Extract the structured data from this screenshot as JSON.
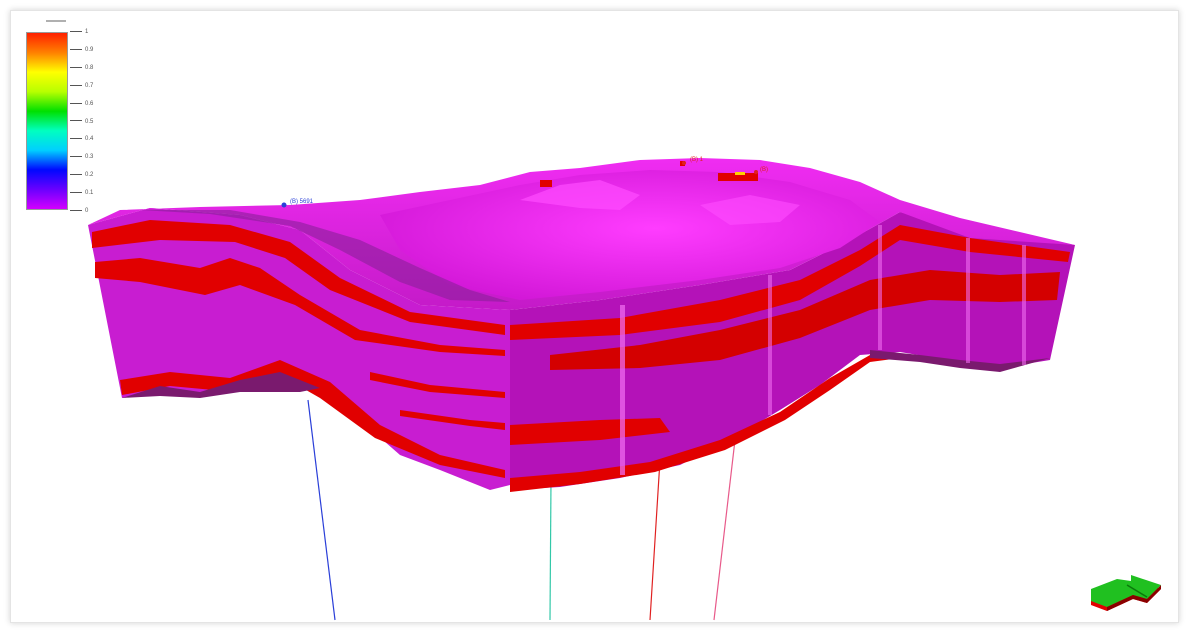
{
  "viewer": {
    "legend_title": "",
    "colorbar": {
      "stops": [
        "#d200ff",
        "#6a00ff",
        "#0008ff",
        "#00cfff",
        "#00ffc0",
        "#00e000",
        "#b8ff00",
        "#ffff00",
        "#ff8000",
        "#ff2000"
      ],
      "ticks": [
        "1",
        "0.9",
        "0.8",
        "0.7",
        "0.6",
        "0.5",
        "0.4",
        "0.3",
        "0.2",
        "0.1",
        "0"
      ]
    },
    "model_colors": {
      "body": "#c81dd1",
      "front_face": "#b412b8",
      "top_surface": "#e21de6",
      "top_valley": "#8a1f9a",
      "layers": "#e10000",
      "bottom": "#7a1a6e"
    },
    "wells": [
      {
        "label": "(B) 5691",
        "color": "#2a3fd8"
      },
      {
        "label": "(B) 1",
        "color": "#e02020"
      },
      {
        "label": "(B)",
        "color": "#e02020"
      },
      {
        "label": "",
        "color": "#32c8a8"
      },
      {
        "label": "",
        "color": "#e85a8a"
      }
    ],
    "compass_icon": "orientation-arrow-icon"
  }
}
